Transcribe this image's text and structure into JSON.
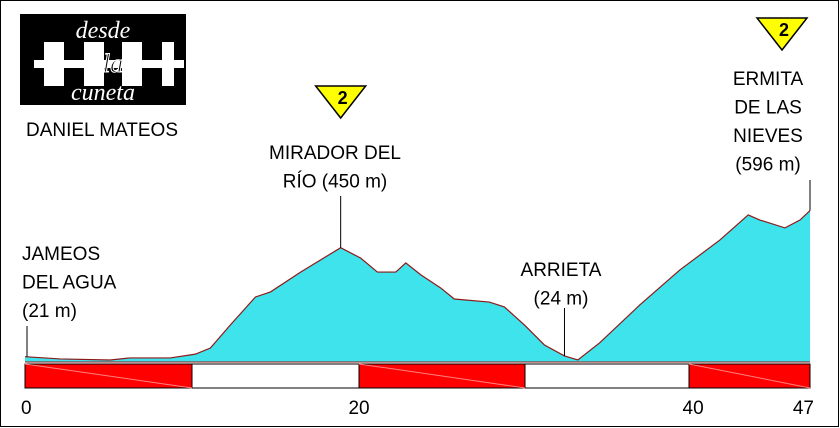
{
  "chart_data": {
    "type": "area",
    "logo": [
      "desde",
      "la",
      "cuneta"
    ],
    "author": "DANIEL MATEOS",
    "color": "#3fe3ec",
    "line_color": "#8b1a1a",
    "x": [
      0,
      2.1,
      5.1,
      6.3,
      8.7,
      10.2,
      11.1,
      12.3,
      13.8,
      14.7,
      16.5,
      18.9,
      20.1,
      21.1,
      22.2,
      22.8,
      23.7,
      24.9,
      25.7,
      27.8,
      28.7,
      29.9,
      31.1,
      32.3,
      33.1,
      34.4,
      36.8,
      39.2,
      41.6,
      43.3,
      44.0,
      45.5,
      46.4,
      47
    ],
    "values": [
      21,
      12,
      8,
      16,
      16,
      31,
      55,
      146,
      256,
      276,
      354,
      450,
      409,
      354,
      354,
      390,
      343,
      291,
      248,
      236,
      217,
      146,
      67,
      24,
      8,
      75,
      224,
      362,
      480,
      579,
      559,
      528,
      559,
      596
    ],
    "xlim": [
      0,
      47
    ],
    "xticks": [
      0,
      20,
      40,
      47
    ],
    "ylim": [
      0,
      600
    ],
    "annotations": [
      {
        "lines": [
          "JAMEOS",
          "DEL AGUA",
          "(21 m)"
        ],
        "x": 0,
        "y": 21
      },
      {
        "lines": [
          "MIRADOR DEL",
          "RÍO (450 m)"
        ],
        "x": 18.9,
        "y": 450
      },
      {
        "lines": [
          "ARRIETA",
          "(24 m)"
        ],
        "x": 32.3,
        "y": 24
      },
      {
        "lines": [
          "ERMITA",
          "DE LAS",
          "NIEVES",
          "(596 m)"
        ],
        "x": 47,
        "y": 596
      }
    ],
    "climbs": [
      {
        "x": 18.9,
        "category": 2
      },
      {
        "x": 47,
        "category": 2
      }
    ]
  }
}
